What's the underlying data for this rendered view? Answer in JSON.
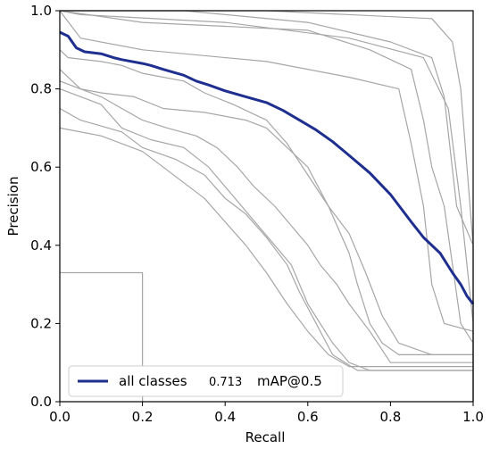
{
  "chart_data": {
    "type": "line",
    "title": "",
    "xlabel": "Recall",
    "ylabel": "Precision",
    "xlim": [
      0,
      1
    ],
    "ylim": [
      0,
      1
    ],
    "x_ticks": [
      "0.0",
      "0.2",
      "0.4",
      "0.6",
      "0.8",
      "1.0"
    ],
    "y_ticks": [
      "0.0",
      "0.2",
      "0.4",
      "0.6",
      "0.8",
      "1.0"
    ],
    "grid": false,
    "legend": {
      "placement": "lower-left",
      "entries": [
        {
          "label": "all classes",
          "value": "0.713",
          "metric": "mAP@0.5"
        }
      ]
    },
    "colors": {
      "all_classes": "#1f2f8f",
      "per_class": "#a6a6a6"
    },
    "series": [
      {
        "name": "all classes",
        "main": true,
        "points": [
          [
            0.0,
            0.945
          ],
          [
            0.02,
            0.935
          ],
          [
            0.04,
            0.905
          ],
          [
            0.06,
            0.895
          ],
          [
            0.1,
            0.89
          ],
          [
            0.13,
            0.88
          ],
          [
            0.15,
            0.875
          ],
          [
            0.2,
            0.865
          ],
          [
            0.22,
            0.86
          ],
          [
            0.25,
            0.85
          ],
          [
            0.3,
            0.835
          ],
          [
            0.33,
            0.82
          ],
          [
            0.36,
            0.81
          ],
          [
            0.4,
            0.795
          ],
          [
            0.45,
            0.78
          ],
          [
            0.5,
            0.765
          ],
          [
            0.54,
            0.745
          ],
          [
            0.58,
            0.72
          ],
          [
            0.62,
            0.695
          ],
          [
            0.66,
            0.665
          ],
          [
            0.7,
            0.63
          ],
          [
            0.75,
            0.585
          ],
          [
            0.8,
            0.53
          ],
          [
            0.85,
            0.46
          ],
          [
            0.88,
            0.42
          ],
          [
            0.92,
            0.38
          ],
          [
            0.95,
            0.33
          ],
          [
            0.97,
            0.3
          ],
          [
            0.985,
            0.27
          ],
          [
            1.0,
            0.25
          ]
        ]
      },
      {
        "points": [
          [
            0.0,
            1.0
          ],
          [
            0.5,
            1.0
          ],
          [
            0.9,
            0.98
          ],
          [
            0.95,
            0.92
          ],
          [
            0.97,
            0.8
          ],
          [
            1.0,
            0.4
          ],
          [
            1.0,
            0.0
          ]
        ]
      },
      {
        "points": [
          [
            0.0,
            1.0
          ],
          [
            0.3,
            1.0
          ],
          [
            0.6,
            0.97
          ],
          [
            0.8,
            0.92
          ],
          [
            0.9,
            0.88
          ],
          [
            0.93,
            0.78
          ],
          [
            0.96,
            0.5
          ],
          [
            1.0,
            0.4
          ],
          [
            1.0,
            0.0
          ]
        ]
      },
      {
        "points": [
          [
            0.0,
            1.0
          ],
          [
            0.05,
            0.99
          ],
          [
            0.4,
            0.97
          ],
          [
            0.7,
            0.93
          ],
          [
            0.88,
            0.88
          ],
          [
            0.94,
            0.75
          ],
          [
            0.97,
            0.5
          ],
          [
            1.0,
            0.2
          ],
          [
            1.0,
            0.0
          ]
        ]
      },
      {
        "points": [
          [
            0.0,
            1.0
          ],
          [
            0.2,
            0.97
          ],
          [
            0.6,
            0.95
          ],
          [
            0.75,
            0.9
          ],
          [
            0.85,
            0.85
          ],
          [
            0.88,
            0.72
          ],
          [
            0.9,
            0.6
          ],
          [
            0.93,
            0.5
          ],
          [
            0.97,
            0.2
          ],
          [
            1.0,
            0.15
          ],
          [
            1.0,
            0.0
          ]
        ]
      },
      {
        "points": [
          [
            0.0,
            1.0
          ],
          [
            0.05,
            0.93
          ],
          [
            0.2,
            0.9
          ],
          [
            0.5,
            0.87
          ],
          [
            0.7,
            0.83
          ],
          [
            0.82,
            0.8
          ],
          [
            0.85,
            0.66
          ],
          [
            0.88,
            0.5
          ],
          [
            0.9,
            0.3
          ],
          [
            0.93,
            0.2
          ],
          [
            1.0,
            0.18
          ],
          [
            1.0,
            0.0
          ]
        ]
      },
      {
        "points": [
          [
            0.0,
            0.9
          ],
          [
            0.02,
            0.88
          ],
          [
            0.1,
            0.87
          ],
          [
            0.15,
            0.86
          ],
          [
            0.2,
            0.84
          ],
          [
            0.3,
            0.82
          ],
          [
            0.35,
            0.79
          ],
          [
            0.42,
            0.76
          ],
          [
            0.5,
            0.72
          ],
          [
            0.55,
            0.66
          ],
          [
            0.6,
            0.58
          ],
          [
            0.65,
            0.5
          ],
          [
            0.7,
            0.43
          ],
          [
            0.74,
            0.33
          ],
          [
            0.78,
            0.22
          ],
          [
            0.82,
            0.15
          ],
          [
            0.9,
            0.12
          ],
          [
            1.0,
            0.12
          ]
        ]
      },
      {
        "points": [
          [
            0.0,
            0.85
          ],
          [
            0.05,
            0.8
          ],
          [
            0.1,
            0.79
          ],
          [
            0.18,
            0.78
          ],
          [
            0.25,
            0.75
          ],
          [
            0.35,
            0.74
          ],
          [
            0.45,
            0.72
          ],
          [
            0.5,
            0.7
          ],
          [
            0.55,
            0.65
          ],
          [
            0.6,
            0.6
          ],
          [
            0.65,
            0.5
          ],
          [
            0.7,
            0.38
          ],
          [
            0.72,
            0.3
          ],
          [
            0.75,
            0.2
          ],
          [
            0.78,
            0.15
          ],
          [
            0.82,
            0.12
          ],
          [
            1.0,
            0.12
          ]
        ]
      },
      {
        "points": [
          [
            0.0,
            0.82
          ],
          [
            0.1,
            0.78
          ],
          [
            0.15,
            0.75
          ],
          [
            0.2,
            0.72
          ],
          [
            0.26,
            0.7
          ],
          [
            0.33,
            0.68
          ],
          [
            0.38,
            0.65
          ],
          [
            0.43,
            0.6
          ],
          [
            0.47,
            0.55
          ],
          [
            0.52,
            0.5
          ],
          [
            0.56,
            0.45
          ],
          [
            0.6,
            0.4
          ],
          [
            0.63,
            0.35
          ],
          [
            0.67,
            0.3
          ],
          [
            0.7,
            0.25
          ],
          [
            0.75,
            0.18
          ],
          [
            0.8,
            0.1
          ],
          [
            1.0,
            0.1
          ]
        ]
      },
      {
        "points": [
          [
            0.0,
            0.8
          ],
          [
            0.1,
            0.76
          ],
          [
            0.15,
            0.7
          ],
          [
            0.22,
            0.67
          ],
          [
            0.3,
            0.65
          ],
          [
            0.36,
            0.6
          ],
          [
            0.4,
            0.55
          ],
          [
            0.44,
            0.5
          ],
          [
            0.48,
            0.45
          ],
          [
            0.52,
            0.4
          ],
          [
            0.56,
            0.35
          ],
          [
            0.6,
            0.25
          ],
          [
            0.63,
            0.2
          ],
          [
            0.66,
            0.15
          ],
          [
            0.7,
            0.1
          ],
          [
            0.75,
            0.08
          ],
          [
            1.0,
            0.08
          ]
        ]
      },
      {
        "points": [
          [
            0.0,
            0.75
          ],
          [
            0.05,
            0.72
          ],
          [
            0.15,
            0.69
          ],
          [
            0.2,
            0.65
          ],
          [
            0.28,
            0.62
          ],
          [
            0.35,
            0.58
          ],
          [
            0.4,
            0.52
          ],
          [
            0.45,
            0.48
          ],
          [
            0.5,
            0.42
          ],
          [
            0.55,
            0.35
          ],
          [
            0.58,
            0.28
          ],
          [
            0.62,
            0.2
          ],
          [
            0.66,
            0.12
          ],
          [
            0.72,
            0.08
          ],
          [
            1.0,
            0.08
          ]
        ]
      },
      {
        "points": [
          [
            0.0,
            0.7
          ],
          [
            0.1,
            0.68
          ],
          [
            0.2,
            0.64
          ],
          [
            0.25,
            0.6
          ],
          [
            0.3,
            0.56
          ],
          [
            0.35,
            0.52
          ],
          [
            0.4,
            0.46
          ],
          [
            0.45,
            0.4
          ],
          [
            0.5,
            0.33
          ],
          [
            0.55,
            0.25
          ],
          [
            0.6,
            0.18
          ],
          [
            0.65,
            0.12
          ],
          [
            0.7,
            0.09
          ],
          [
            1.0,
            0.09
          ]
        ]
      },
      {
        "points": [
          [
            0.0,
            0.33
          ],
          [
            0.2,
            0.33
          ],
          [
            0.2,
            0.0
          ]
        ]
      }
    ]
  }
}
